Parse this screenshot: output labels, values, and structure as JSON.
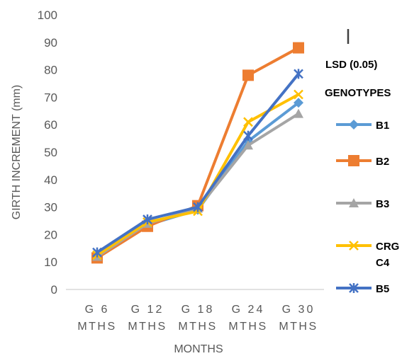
{
  "chart_data": {
    "type": "line",
    "title": "",
    "xlabel": "MONTHS",
    "ylabel": "GIRTH INCREMENT (mm)",
    "ylim": [
      0,
      100
    ],
    "yticks": [
      0,
      10,
      20,
      30,
      40,
      50,
      60,
      70,
      80,
      90,
      100
    ],
    "grid": false,
    "categories": [
      [
        "G 6",
        "MTHS"
      ],
      [
        "G 12",
        "MTHS"
      ],
      [
        "G 18",
        "MTHS"
      ],
      [
        "G 24",
        "MTHS"
      ],
      [
        "G 30",
        "MTHS"
      ]
    ],
    "lsd_label": "LSD (0.05)",
    "legend_title": "GENOTYPES",
    "legend_placement": "right",
    "series": [
      {
        "name": "B1",
        "color": "#5B9BD5",
        "marker": "diamond",
        "values": [
          12,
          23.5,
          29,
          54,
          68
        ]
      },
      {
        "name": "B2",
        "color": "#ED7D31",
        "marker": "square",
        "values": [
          11.5,
          23,
          30.5,
          78,
          88
        ]
      },
      {
        "name": "B3",
        "color": "#A5A5A5",
        "marker": "triangle",
        "values": [
          12,
          24,
          29.5,
          52.5,
          64
        ]
      },
      {
        "name": "CRG C4",
        "legend_lines": [
          "CRG",
          "C4"
        ],
        "color": "#FFC000",
        "marker": "x",
        "values": [
          12.5,
          24.5,
          28.5,
          61,
          71
        ]
      },
      {
        "name": "B5",
        "color": "#4472C4",
        "marker": "star",
        "values": [
          13.5,
          25.5,
          30,
          56,
          78.5
        ]
      }
    ]
  }
}
